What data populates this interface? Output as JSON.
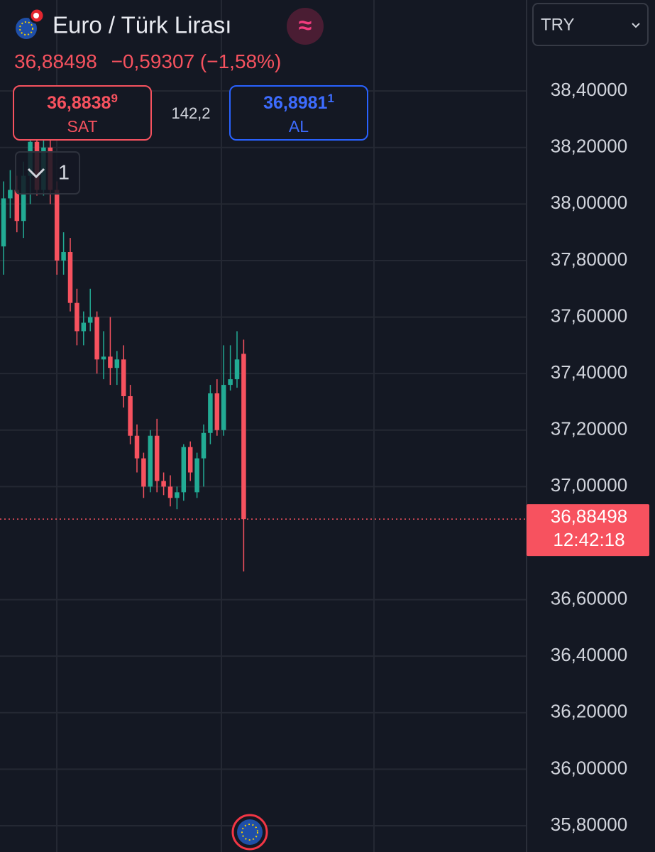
{
  "header": {
    "title": "Euro / Türk Lirası",
    "price": "36,88498",
    "change": "−0,59307 (−1,58%)",
    "sell": {
      "price": "36,8838",
      "pip": "9",
      "label": "SAT"
    },
    "spread": "142,2",
    "buy": {
      "price": "36,8981",
      "pip": "1",
      "label": "AL"
    },
    "collapse_count": "1",
    "currency": "TRY"
  },
  "chart_data": {
    "type": "candlestick",
    "up_color": "#22ab94",
    "down_color": "#f7525f",
    "open": [
      37.85,
      38.02,
      38.05,
      37.94,
      38.1,
      38.22,
      38.05,
      38.2,
      38.05,
      37.8,
      37.83,
      37.65,
      37.55,
      37.58,
      37.6,
      37.45,
      37.46,
      37.42,
      37.45,
      37.32,
      37.18,
      37.1,
      37.0,
      37.18,
      37.02,
      37.0,
      36.96,
      36.98,
      37.14,
      36.98,
      37.1,
      37.19,
      37.33,
      37.2,
      37.36,
      37.38,
      37.47
    ],
    "high": [
      38.08,
      38.12,
      38.1,
      38.15,
      38.28,
      38.24,
      38.28,
      38.25,
      38.08,
      37.9,
      37.88,
      37.7,
      37.62,
      37.7,
      37.62,
      37.55,
      37.6,
      37.48,
      37.5,
      37.36,
      37.22,
      37.12,
      37.2,
      37.24,
      37.05,
      37.04,
      37.0,
      37.15,
      37.16,
      37.12,
      37.22,
      37.36,
      37.38,
      37.5,
      37.5,
      37.55,
      37.52
    ],
    "low": [
      37.75,
      37.95,
      37.9,
      37.88,
      38.0,
      38.03,
      38.03,
      38.0,
      37.75,
      37.75,
      37.62,
      37.5,
      37.5,
      37.55,
      37.4,
      37.38,
      37.36,
      37.36,
      37.28,
      37.15,
      37.05,
      36.96,
      36.98,
      36.98,
      36.97,
      36.93,
      36.92,
      36.95,
      37.02,
      36.96,
      37.0,
      37.15,
      37.18,
      37.18,
      37.34,
      37.35,
      36.7
    ],
    "close": [
      38.02,
      38.05,
      37.94,
      38.1,
      38.22,
      38.05,
      38.2,
      38.05,
      37.8,
      37.83,
      37.65,
      37.55,
      37.58,
      37.6,
      37.45,
      37.46,
      37.42,
      37.45,
      37.32,
      37.18,
      37.1,
      37.0,
      37.18,
      37.02,
      37.0,
      36.96,
      36.98,
      37.14,
      37.05,
      37.1,
      37.19,
      37.33,
      37.2,
      37.36,
      37.38,
      37.45,
      36.88498
    ],
    "ylim": [
      35.707,
      38.722
    ],
    "yticks": [
      {
        "value": 35.8,
        "label": "35,80000"
      },
      {
        "value": 36.0,
        "label": "36,00000"
      },
      {
        "value": 36.2,
        "label": "36,20000"
      },
      {
        "value": 36.4,
        "label": "36,40000"
      },
      {
        "value": 36.6,
        "label": "36,60000"
      },
      {
        "value": 37.0,
        "label": "37,00000"
      },
      {
        "value": 37.2,
        "label": "37,20000"
      },
      {
        "value": 37.4,
        "label": "37,40000"
      },
      {
        "value": 37.6,
        "label": "37,60000"
      },
      {
        "value": 37.8,
        "label": "37,80000"
      },
      {
        "value": 38.0,
        "label": "38,00000"
      },
      {
        "value": 38.2,
        "label": "38,20000"
      },
      {
        "value": 38.4,
        "label": "38,40000"
      }
    ],
    "grid": true,
    "price_line": {
      "value": 36.88498,
      "label": "36,88498",
      "time": "12:42:18",
      "color": "#f7525f"
    }
  }
}
